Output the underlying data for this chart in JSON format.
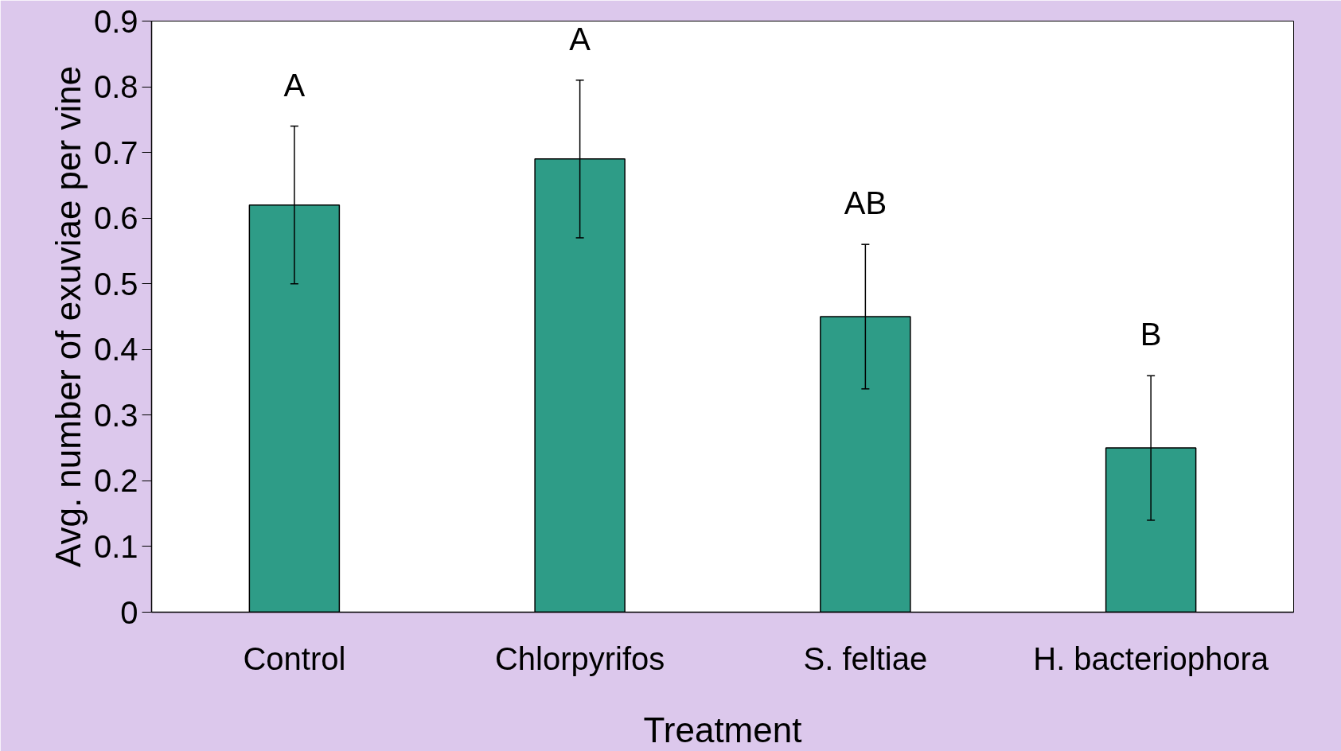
{
  "chart_data": {
    "type": "bar",
    "xlabel": "Treatment",
    "ylabel": "Avg. number of exuviae per vine",
    "categories": [
      "Control",
      "Chlorpyrifos",
      "S. feltiae",
      "H. bacteriophora"
    ],
    "values": [
      0.62,
      0.69,
      0.45,
      0.25
    ],
    "errors": [
      0.12,
      0.12,
      0.11,
      0.11
    ],
    "color": "#2e9c87",
    "ylim": [
      0,
      0.9
    ],
    "yticks": [
      0,
      0.1,
      0.2,
      0.3,
      0.4,
      0.5,
      0.6,
      0.7,
      0.8,
      0.9
    ],
    "annotations": [
      "A",
      "A",
      "AB",
      "B"
    ],
    "grid": false
  }
}
